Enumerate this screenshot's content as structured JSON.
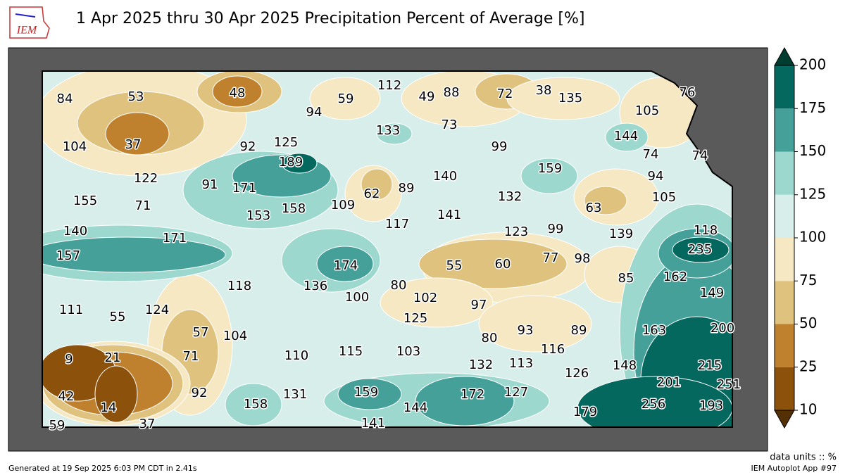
{
  "header": {
    "logo": "IEM",
    "title": "1 Apr 2025 thru 30 Apr 2025 Precipitation Percent of Average [%]"
  },
  "colorbar": {
    "ticks": [
      10,
      25,
      50,
      75,
      100,
      125,
      150,
      175,
      200
    ],
    "colors": [
      "#8c510a",
      "#bf812d",
      "#dfc27d",
      "#f6e8c3",
      "#d8eeeb",
      "#9dd8cf",
      "#44a099",
      "#04685f"
    ],
    "under_color": "#543005",
    "over_color": "#003c30",
    "units_label": "data units :: %"
  },
  "labels": [
    84,
    53,
    48,
    59,
    112,
    49,
    88,
    72,
    38,
    135,
    76,
    94,
    105,
    73,
    133,
    144,
    104,
    37,
    92,
    125,
    99,
    74,
    74,
    189,
    159,
    140,
    94,
    122,
    91,
    171,
    62,
    89,
    132,
    105,
    155,
    71,
    109,
    63,
    153,
    158,
    141,
    117,
    99,
    139,
    118,
    123,
    140,
    171,
    235,
    157,
    55,
    60,
    77,
    98,
    174,
    162,
    85,
    118,
    136,
    80,
    149,
    100,
    102,
    97,
    111,
    55,
    124,
    125,
    200,
    57,
    104,
    93,
    89,
    163,
    80,
    116,
    9,
    21,
    71,
    110,
    115,
    103,
    132,
    113,
    126,
    148,
    215,
    201,
    251,
    42,
    14,
    92,
    158,
    131,
    159,
    144,
    172,
    127,
    179,
    256,
    193,
    59,
    37,
    141
  ],
  "footer": {
    "generated": "Generated at 19 Sep 2025 6:03 PM CDT in 2.41s",
    "app": "IEM Autoplot App #97"
  }
}
